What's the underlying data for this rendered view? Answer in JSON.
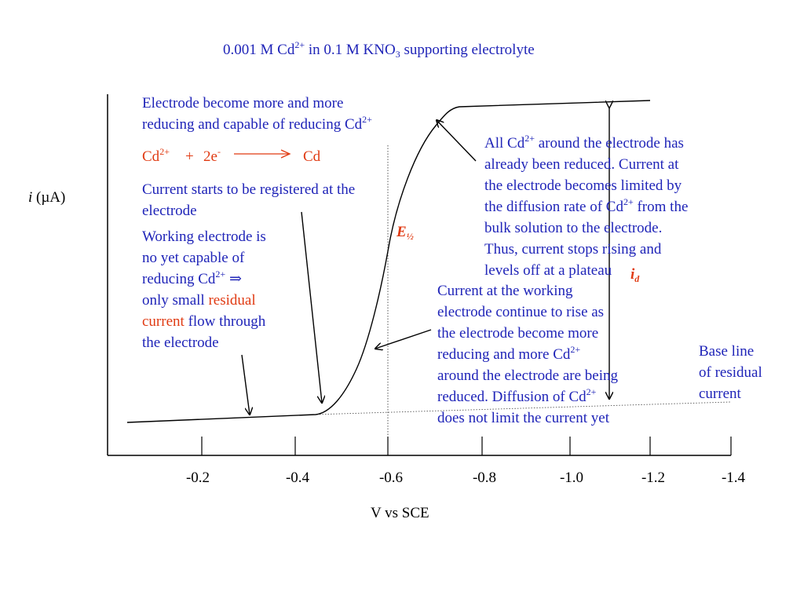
{
  "title": {
    "part1": "0.001 M Cd",
    "sup1": "2+",
    "part2": " in 0.1 M KNO",
    "sub1": "3",
    "part3": " supporting electrolyte"
  },
  "y_axis_label": {
    "italic": "i",
    "rest": " (µA)"
  },
  "x_axis_label": "V vs SCE",
  "x_ticks": [
    "-0.2",
    "-0.4",
    "-0.6",
    "-0.8",
    "-1.0",
    "-1.2",
    "-1.4"
  ],
  "annotations": {
    "reducing": {
      "line1": "Electrode become more and more",
      "line2a": "reducing and capable of reducing Cd",
      "line2sup": "2+"
    },
    "reaction": {
      "reactant": "Cd",
      "reactant_sup": "2+",
      "plus": "+",
      "electrons": "2e",
      "electrons_sup": "-",
      "product": "Cd"
    },
    "starts": {
      "line1": "Current starts to be registered at the",
      "line2": "electrode"
    },
    "working": {
      "line1": "Working electrode is",
      "line2": "no yet capable of",
      "line3a": "reducing Cd",
      "line3sup": "2+",
      "line3b": " ⇒",
      "line4a": "only small ",
      "line4red": "residual",
      "line5red": "current",
      "line5b": " flow through",
      "line6": "the electrode"
    },
    "all_reduced": {
      "line1a": "All Cd",
      "line1sup": "2+",
      "line1b": " around the electrode has",
      "line2": "already been reduced. Current at",
      "line3": "the electrode becomes limited by",
      "line4a": "the diffusion rate of Cd",
      "line4sup": "2+",
      "line4b": " from the",
      "line5": "bulk solution to the electrode.",
      "line6": "Thus, current stops rising and",
      "line7": "levels off at a plateau"
    },
    "rising": {
      "line1": "Current at the working",
      "line2": "electrode continue to rise as",
      "line3": "the electrode become more",
      "line4a": "reducing and more Cd",
      "line4sup": "2+",
      "line5": "around the electrode are being",
      "line6a": "reduced. Diffusion of Cd",
      "line6sup": "2+",
      "line7": "does not limit the current yet"
    },
    "baseline": {
      "line1": "Base line",
      "line2": "of residual",
      "line3": "current"
    },
    "e_half": {
      "main": "E",
      "sub": "½"
    },
    "i_d": {
      "main": "i",
      "sub": "d"
    }
  },
  "colors": {
    "blue_text": "#1f24b8",
    "red_text": "#e03a12",
    "axis": "#000000"
  }
}
